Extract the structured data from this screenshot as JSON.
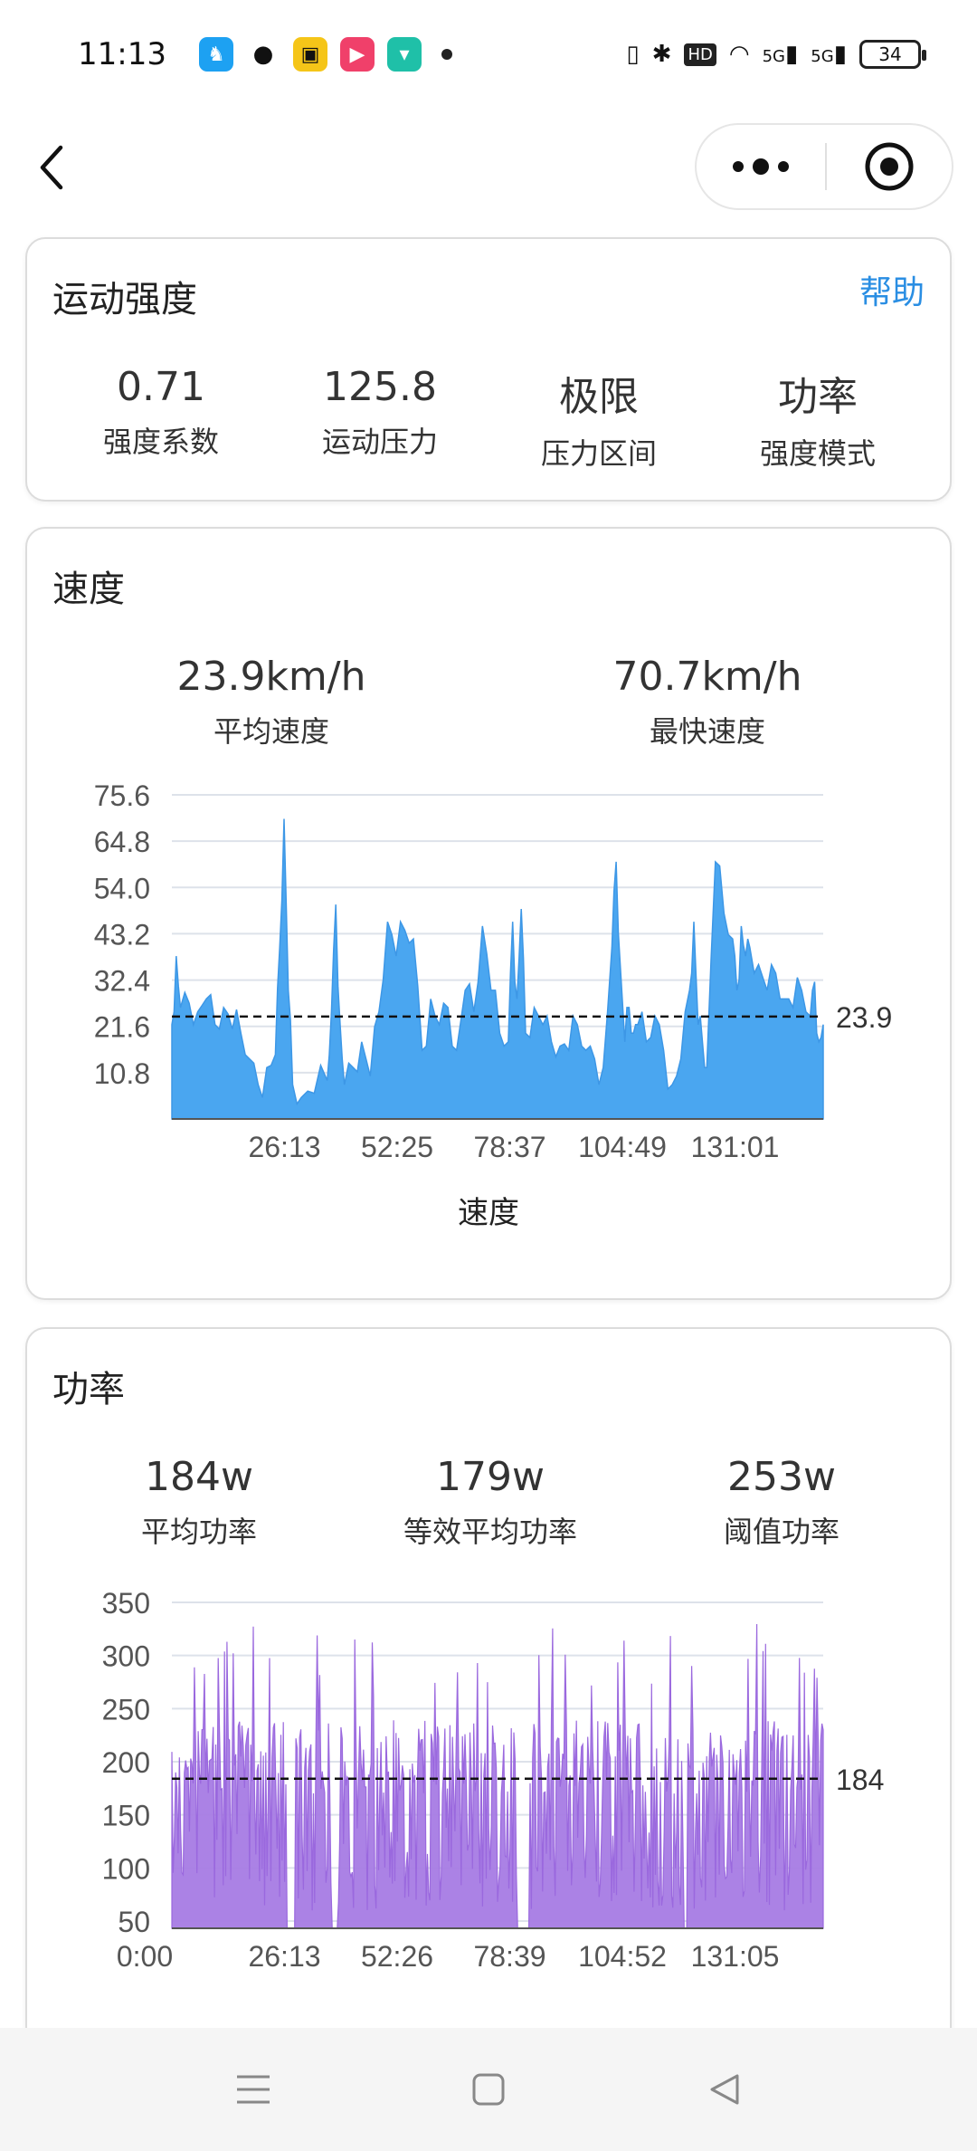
{
  "status_bar": {
    "time": "11:13",
    "network_1": "5G",
    "network_2": "5G",
    "battery": "34"
  },
  "intensity_card": {
    "title": "运动强度",
    "help": "帮助",
    "stats": [
      {
        "value": "0.71",
        "label": "强度系数"
      },
      {
        "value": "125.8",
        "label": "运动压力"
      },
      {
        "value": "极限",
        "label": "压力区间"
      },
      {
        "value": "功率",
        "label": "强度模式"
      }
    ]
  },
  "speed_card": {
    "title": "速度",
    "stats": [
      {
        "value": "23.9km/h",
        "label": "平均速度"
      },
      {
        "value": "70.7km/h",
        "label": "最快速度"
      }
    ],
    "xlabel": "速度"
  },
  "power_card": {
    "title": "功率",
    "stats": [
      {
        "value": "184w",
        "label": "平均功率"
      },
      {
        "value": "179w",
        "label": "等效平均功率"
      },
      {
        "value": "253w",
        "label": "阈值功率"
      }
    ]
  },
  "chart_data": [
    {
      "type": "area",
      "xlabel": "速度",
      "ylabel": "",
      "y_ticks": [
        "10.8",
        "21.6",
        "32.4",
        "43.2",
        "54.0",
        "64.8",
        "75.6"
      ],
      "x_ticks": [
        "26:13",
        "52:25",
        "78:37",
        "104:49",
        "131:01"
      ],
      "ylim": [
        0,
        75.6
      ],
      "xlim_minutes": [
        0,
        151
      ],
      "average_line": {
        "value": 23.9,
        "label": "23.9"
      },
      "color": "#4aa6f0",
      "x": [
        0,
        1,
        2,
        4,
        6,
        8,
        10,
        12,
        14,
        16,
        18,
        20,
        22,
        24,
        25,
        26,
        27,
        28,
        30,
        33,
        36,
        37,
        38,
        39,
        40,
        42,
        44,
        46,
        48,
        50,
        52,
        54,
        56,
        58,
        60,
        62,
        64,
        66,
        68,
        70,
        72,
        74,
        76,
        78,
        79,
        80,
        81,
        82,
        84,
        86,
        88,
        90,
        92,
        94,
        96,
        98,
        100,
        102,
        103,
        104,
        105,
        106,
        107,
        108,
        110,
        112,
        114,
        116,
        118,
        120,
        121,
        122,
        123,
        124,
        126,
        128,
        130,
        131,
        132,
        133,
        134,
        136,
        138,
        140,
        142,
        144,
        146,
        148,
        149,
        150,
        151
      ],
      "values": [
        22,
        38,
        26,
        27,
        25,
        28,
        22,
        26,
        21,
        20,
        14,
        8,
        12,
        15,
        40,
        70,
        30,
        8,
        5,
        6,
        9,
        25,
        50,
        22,
        8,
        12,
        18,
        10,
        25,
        46,
        38,
        44,
        42,
        16,
        28,
        22,
        26,
        16,
        30,
        25,
        45,
        30,
        20,
        18,
        46,
        28,
        49,
        20,
        26,
        22,
        18,
        17,
        16,
        22,
        16,
        14,
        12,
        40,
        60,
        35,
        18,
        26,
        20,
        22,
        18,
        24,
        16,
        8,
        14,
        30,
        46,
        22,
        18,
        12,
        60,
        48,
        42,
        30,
        45,
        38,
        40,
        36,
        30,
        34,
        28,
        26,
        30,
        24,
        32,
        18,
        22
      ]
    },
    {
      "type": "area",
      "xlabel": "",
      "ylabel": "",
      "y_ticks": [
        "50",
        "100",
        "150",
        "200",
        "250",
        "300",
        "350"
      ],
      "x_ticks": [
        "0:00",
        "26:13",
        "52:26",
        "78:39",
        "104:52",
        "131:05"
      ],
      "ylim": [
        50,
        350
      ],
      "xlim_minutes": [
        0,
        151
      ],
      "average_line": {
        "value": 184,
        "label": "184"
      },
      "color": "#a77be4"
    }
  ]
}
